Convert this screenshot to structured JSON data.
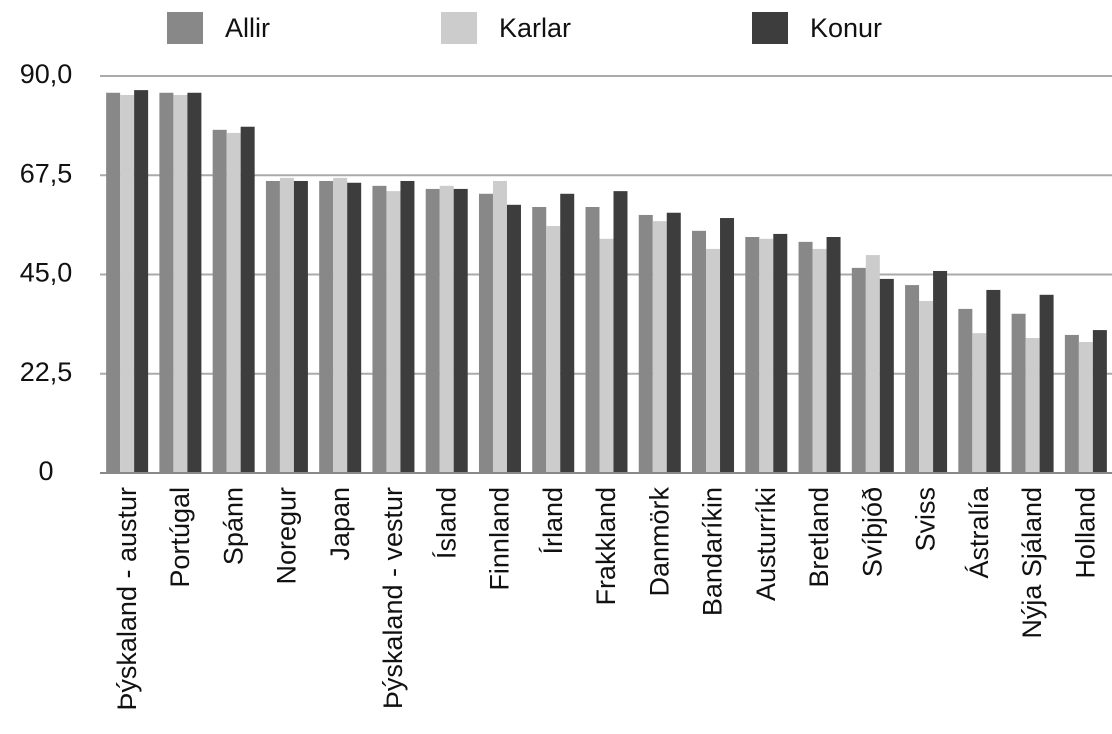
{
  "chart_data": {
    "type": "bar",
    "categories": [
      "Þýskaland - austur",
      "Portúgal",
      "Spánn",
      "Noregur",
      "Japan",
      "Þýskaland - vestur",
      "Ísland",
      "Finnland",
      "Írland",
      "Frakkland",
      "Danmörk",
      "Bandaríkin",
      "Austurríki",
      "Bretland",
      "Svíþjóð",
      "Sviss",
      "Ástralía",
      "Nýja Sjáland",
      "Holland"
    ],
    "series": [
      {
        "name": "Allir",
        "color": "#888888",
        "values": [
          86.2,
          86.2,
          77.8,
          66.2,
          66.2,
          65.1,
          64.4,
          63.3,
          60.3,
          60.3,
          58.5,
          54.9,
          53.5,
          52.4,
          46.5,
          42.6,
          37.2,
          36.1,
          31.3
        ]
      },
      {
        "name": "Karlar",
        "color": "#cccccc",
        "values": [
          85.7,
          85.7,
          77.1,
          66.9,
          66.9,
          63.9,
          65.1,
          66.2,
          56.0,
          53.1,
          57.1,
          50.8,
          53.1,
          50.8,
          49.4,
          39.0,
          31.7,
          30.6,
          29.7
        ]
      },
      {
        "name": "Konur",
        "color": "#3d3d3d",
        "values": [
          86.8,
          86.2,
          78.5,
          66.2,
          65.8,
          66.2,
          64.4,
          60.8,
          63.3,
          63.9,
          59.0,
          57.8,
          54.2,
          53.5,
          44.0,
          45.8,
          41.5,
          40.4,
          32.4
        ]
      }
    ],
    "ylim": [
      0,
      90
    ],
    "yticks": [
      0,
      {
        "value": 22.5,
        "label": "22,5"
      },
      {
        "value": 45,
        "label": "45,0"
      },
      {
        "value": 67.5,
        "label": "67,5"
      },
      {
        "value": 90,
        "label": "90,0"
      }
    ],
    "grid": true,
    "legend": "top"
  }
}
